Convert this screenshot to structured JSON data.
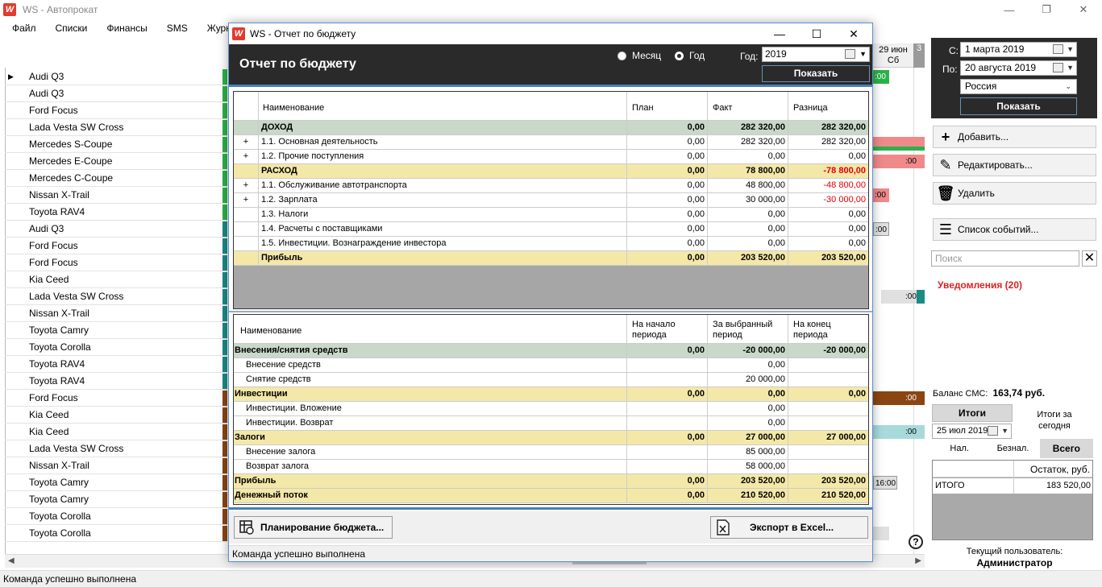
{
  "app": {
    "title": "WS - Автопрокат",
    "logo_letter": "W",
    "menu": [
      "Файл",
      "Списки",
      "Финансы",
      "SMS",
      "Журналы"
    ],
    "status": "Команда успешно выполнена"
  },
  "cars": [
    {
      "name": "Audi Q3",
      "tag": "#2bb24a",
      "selected": true
    },
    {
      "name": "Audi Q3",
      "tag": "#2bb24a"
    },
    {
      "name": "Ford Focus",
      "tag": "#2bb24a"
    },
    {
      "name": "Lada Vesta SW Cross",
      "tag": "#2bb24a"
    },
    {
      "name": "Mercedes S-Coupe",
      "tag": "#2bb24a"
    },
    {
      "name": "Mercedes E-Coupe",
      "tag": "#2bb24a"
    },
    {
      "name": "Mercedes C-Coupe",
      "tag": "#2bb24a"
    },
    {
      "name": "Nissan X-Trail",
      "tag": "#2bb24a"
    },
    {
      "name": "Toyota RAV4",
      "tag": "#2bb24a"
    },
    {
      "name": "Audi Q3",
      "tag": "#1a8c86"
    },
    {
      "name": "Ford Focus",
      "tag": "#1a8c86"
    },
    {
      "name": "Ford Focus",
      "tag": "#1a8c86"
    },
    {
      "name": "Kia Ceed",
      "tag": "#1a8c86"
    },
    {
      "name": "Lada Vesta SW Cross",
      "tag": "#1a8c86"
    },
    {
      "name": "Nissan X-Trail",
      "tag": "#1a8c86"
    },
    {
      "name": "Toyota Camry",
      "tag": "#1a8c86"
    },
    {
      "name": "Toyota Corolla",
      "tag": "#1a8c86"
    },
    {
      "name": "Toyota RAV4",
      "tag": "#1a8c86"
    },
    {
      "name": "Toyota RAV4",
      "tag": "#1a8c86"
    },
    {
      "name": "Ford Focus",
      "tag": "#8b4513"
    },
    {
      "name": "Kia Ceed",
      "tag": "#8b4513"
    },
    {
      "name": "Kia Ceed",
      "tag": "#8b4513"
    },
    {
      "name": "Lada Vesta SW Cross",
      "tag": "#8b4513"
    },
    {
      "name": "Nissan X-Trail",
      "tag": "#8b4513"
    },
    {
      "name": "Toyota Camry",
      "tag": "#8b4513"
    },
    {
      "name": "Toyota Camry",
      "tag": "#8b4513"
    },
    {
      "name": "Toyota Corolla",
      "tag": "#8b4513"
    },
    {
      "name": "Toyota Corolla",
      "tag": "#8b4513"
    }
  ],
  "timeline": {
    "date_line1": "29 июн",
    "date_line2": "Сб",
    "next_col": "3",
    "cells": [
      ":00",
      ":00",
      ":00",
      ":00",
      ":00",
      ":00",
      ":00",
      "16:00"
    ]
  },
  "right": {
    "from_label": "С:",
    "from_value": "1   марта   2019",
    "to_label": "По:",
    "to_value": "20  августа  2019",
    "country": "Россия",
    "show": "Показать",
    "add": "Добавить...",
    "edit": "Редактировать...",
    "delete": "Удалить",
    "events": "Список событий...",
    "search_placeholder": "Поиск",
    "notifications": "Уведомления (20)",
    "sms_label": "Баланс СМС:",
    "sms_value": "163,74 руб.",
    "itogi": "Итоги",
    "itogi_date": "25 июл 2019",
    "itogi_today": "Итоги за сегодня",
    "tabs": [
      "Нал.",
      "Безнал.",
      "Всего"
    ],
    "totals_header": "Остаток, руб.",
    "totals_row_label": "ИТОГО",
    "totals_row_value": "183 520,00",
    "user_label": "Текущий пользователь:",
    "user_name": "Администратор"
  },
  "dialog": {
    "title": "WS - Отчет по бюджету",
    "header": "Отчет по бюджету",
    "radio_month": "Месяц",
    "radio_year": "Год",
    "year_label": "Год:",
    "year_value": "2019",
    "show": "Показать",
    "status": "Команда успешно выполнена",
    "plan_button": "Планирование бюджета...",
    "export_button": "Экспорт в Excel...",
    "table1": {
      "headers": [
        "Наименование",
        "План",
        "Факт",
        "Разница"
      ],
      "rows": [
        {
          "exp": "",
          "name": "ДОХОД",
          "plan": "0,00",
          "fact": "282 320,00",
          "diff": "282 320,00",
          "style": "gray",
          "bold": true
        },
        {
          "exp": "+",
          "name": "1.1. Основная деятельность",
          "plan": "0,00",
          "fact": "282 320,00",
          "diff": "282 320,00"
        },
        {
          "exp": "+",
          "name": "1.2. Прочие поступления",
          "plan": "0,00",
          "fact": "0,00",
          "diff": "0,00"
        },
        {
          "exp": "",
          "name": "РАСХОД",
          "plan": "0,00",
          "fact": "78 800,00",
          "diff": "-78 800,00",
          "style": "yellow",
          "bold": true,
          "neg": true
        },
        {
          "exp": "+",
          "name": "1.1. Обслуживание автотранспорта",
          "plan": "0,00",
          "fact": "48 800,00",
          "diff": "-48 800,00",
          "neg": true
        },
        {
          "exp": "+",
          "name": "1.2. Зарплата",
          "plan": "0,00",
          "fact": "30 000,00",
          "diff": "-30 000,00",
          "neg": true
        },
        {
          "exp": "",
          "name": "1.3. Налоги",
          "plan": "0,00",
          "fact": "0,00",
          "diff": "0,00"
        },
        {
          "exp": "",
          "name": "1.4. Расчеты с поставщиками",
          "plan": "0,00",
          "fact": "0,00",
          "diff": "0,00"
        },
        {
          "exp": "",
          "name": "1.5. Инвестиции. Вознаграждение инвестора",
          "plan": "0,00",
          "fact": "0,00",
          "diff": "0,00"
        },
        {
          "exp": "",
          "name": "Прибыль",
          "plan": "0,00",
          "fact": "203 520,00",
          "diff": "203 520,00",
          "style": "yellow",
          "bold": true
        }
      ]
    },
    "table2": {
      "headers": [
        "Наименование",
        "На начало периода",
        "За выбранный период",
        "На конец периода"
      ],
      "rows": [
        {
          "name": "Внесения/снятия средств",
          "start": "0,00",
          "period": "-20 000,00",
          "end": "-20 000,00",
          "style": "gray",
          "bold": true
        },
        {
          "name": "Внесение средств",
          "start": "",
          "period": "0,00",
          "end": "",
          "indent": true
        },
        {
          "name": "Снятие средств",
          "start": "",
          "period": "20 000,00",
          "end": "",
          "indent": true
        },
        {
          "name": "Инвестиции",
          "start": "0,00",
          "period": "0,00",
          "end": "0,00",
          "style": "yellow",
          "bold": true
        },
        {
          "name": "Инвестиции. Вложение",
          "start": "",
          "period": "0,00",
          "end": "",
          "indent": true
        },
        {
          "name": "Инвестиции. Возврат",
          "start": "",
          "period": "0,00",
          "end": "",
          "indent": true
        },
        {
          "name": "Залоги",
          "start": "0,00",
          "period": "27 000,00",
          "end": "27 000,00",
          "style": "yellow",
          "bold": true
        },
        {
          "name": "Внесение залога",
          "start": "",
          "period": "85 000,00",
          "end": "",
          "indent": true
        },
        {
          "name": "Возврат залога",
          "start": "",
          "period": "58 000,00",
          "end": "",
          "indent": true
        },
        {
          "name": "Прибыль",
          "start": "0,00",
          "period": "203 520,00",
          "end": "203 520,00",
          "style": "yellow",
          "bold": true
        },
        {
          "name": "Денежный поток",
          "start": "0,00",
          "period": "210 520,00",
          "end": "210 520,00",
          "style": "yellow",
          "bold": true
        }
      ]
    }
  }
}
